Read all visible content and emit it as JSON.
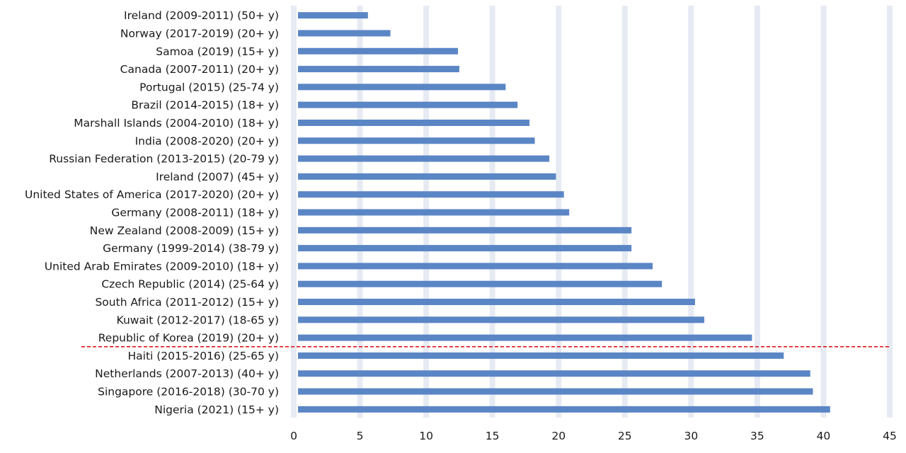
{
  "chart_data": {
    "type": "bar",
    "orientation": "horizontal",
    "title": "",
    "xlabel": "",
    "ylabel": "",
    "xlim": [
      0,
      45
    ],
    "xticks": [
      0,
      5,
      10,
      15,
      20,
      25,
      30,
      35,
      40,
      45
    ],
    "grid": true,
    "legend": null,
    "bar_color": "#5B86C5",
    "grid_color": "#E6EBF3",
    "reference_line": {
      "style": "dashed",
      "color": "#E0161B",
      "between_index": [
        18,
        19
      ]
    },
    "categories": [
      "Ireland (2009-2011) (50+ y)",
      "Norway (2017-2019) (20+ y)",
      "Samoa (2019) (15+ y)",
      "Canada (2007-2011) (20+ y)",
      "Portugal (2015) (25-74 y)",
      "Brazil (2014-2015) (18+ y)",
      "Marshall Islands (2004-2010) (18+ y)",
      "India (2008-2020) (20+ y)",
      "Russian Federation (2013-2015) (20-79 y)",
      "Ireland (2007) (45+ y)",
      "United States of America (2017-2020) (20+ y)",
      "Germany (2008-2011) (18+ y)",
      "New Zealand (2008-2009) (15+ y)",
      "Germany (1999-2014) (38-79 y)",
      "United Arab Emirates (2009-2010) (18+ y)",
      "Czech Republic (2014) (25-64 y)",
      "South Africa (2011-2012) (15+ y)",
      "Kuwait (2012-2017) (18-65 y)",
      "Republic of Korea (2019) (20+ y)",
      "Haiti (2015-2016) (25-65 y)",
      "Netherlands (2007-2013) (40+ y)",
      "Singapore (2016-2018) (30-70 y)",
      "Nigeria (2021) (15+ y)"
    ],
    "values": [
      5.6,
      7.3,
      12.4,
      12.5,
      16.0,
      16.9,
      17.8,
      18.2,
      19.3,
      19.8,
      20.4,
      20.8,
      25.5,
      25.5,
      27.1,
      27.8,
      30.3,
      31.0,
      34.6,
      37.0,
      39.0,
      39.2,
      40.5
    ]
  }
}
